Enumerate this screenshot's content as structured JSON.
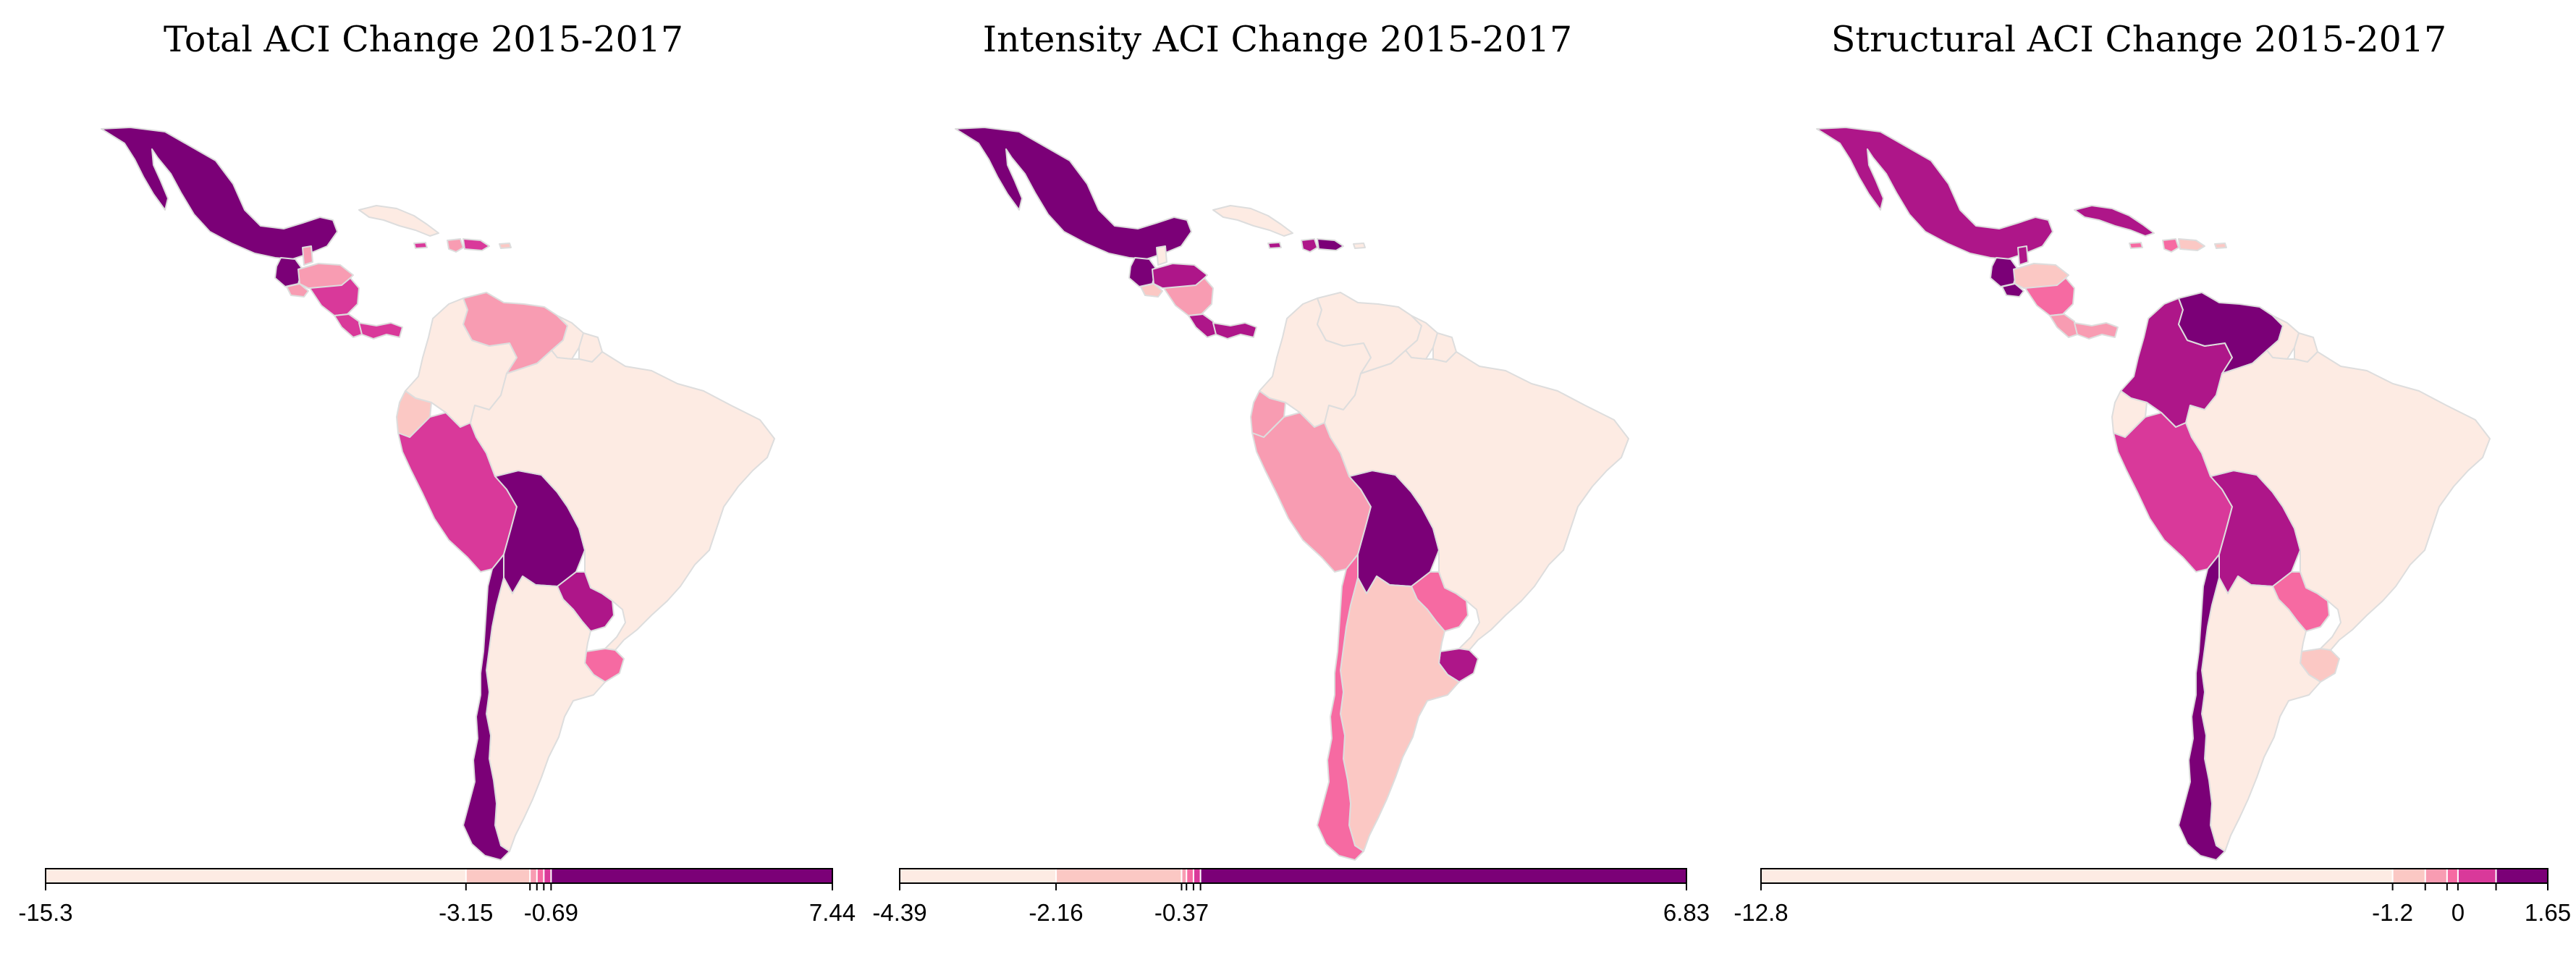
{
  "palette": {
    "c1": "#fdebe3",
    "c2": "#fbc8c4",
    "c3": "#f89cb2",
    "c4": "#f66aa2",
    "c5": "#d9399a",
    "c6": "#ae1689",
    "c7": "#7b0077"
  },
  "maps": [
    {
      "id": "total",
      "title": "Total ACI Change 2015-2017",
      "country_class": {
        "mexico": "c7",
        "guatemala": "c7",
        "belize": "c3",
        "honduras": "c3",
        "el_salvador": "c3",
        "nicaragua": "c5",
        "costa_rica": "c5",
        "panama": "c5",
        "cuba": "c1",
        "dominican_rep": "c5",
        "haiti": "c3",
        "jamaica": "c5",
        "puerto_rico": "c2",
        "colombia": "c1",
        "venezuela": "c3",
        "guyana": "c1",
        "suriname": "c1",
        "ecuador": "c2",
        "peru": "c5",
        "brazil": "c1",
        "bolivia": "c7",
        "paraguay": "c6",
        "chile": "c7",
        "argentina": "c1",
        "uruguay": "c4"
      },
      "legend": {
        "min": -15.3,
        "max": 7.44,
        "breaks": [
          -15.3,
          -3.15,
          -1.3,
          -1.1,
          -0.9,
          -0.69,
          7.44
        ],
        "colors": [
          "c1",
          "c2",
          "c3",
          "c4",
          "c5",
          "c7"
        ],
        "labels": [
          {
            "value": -15.3,
            "text": "-15.3"
          },
          {
            "value": -3.15,
            "text": "-3.15"
          },
          {
            "value": -0.69,
            "text": "-0.69"
          },
          {
            "value": 7.44,
            "text": "7.44"
          }
        ]
      }
    },
    {
      "id": "intensity",
      "title": "Intensity ACI Change 2015-2017",
      "country_class": {
        "mexico": "c7",
        "guatemala": "c7",
        "belize": "c1",
        "honduras": "c6",
        "el_salvador": "c2",
        "nicaragua": "c3",
        "costa_rica": "c6",
        "panama": "c6",
        "cuba": "c1",
        "dominican_rep": "c7",
        "haiti": "c6",
        "jamaica": "c6",
        "puerto_rico": "c1",
        "colombia": "c1",
        "venezuela": "c1",
        "guyana": "c1",
        "suriname": "c1",
        "ecuador": "c3",
        "peru": "c3",
        "brazil": "c1",
        "bolivia": "c7",
        "paraguay": "c4",
        "chile": "c4",
        "argentina": "c2",
        "uruguay": "c6"
      },
      "legend": {
        "min": -4.39,
        "max": 6.83,
        "breaks": [
          -4.39,
          -2.16,
          -0.37,
          -0.3,
          -0.2,
          -0.1,
          6.83
        ],
        "colors": [
          "c1",
          "c2",
          "c3",
          "c4",
          "c5",
          "c7"
        ],
        "labels": [
          {
            "value": -4.39,
            "text": "-4.39"
          },
          {
            "value": -2.16,
            "text": "-2.16"
          },
          {
            "value": -0.37,
            "text": "-0.37"
          },
          {
            "value": 6.83,
            "text": "6.83"
          }
        ]
      }
    },
    {
      "id": "structural",
      "title": "Structural ACI Change 2015-2017",
      "country_class": {
        "mexico": "c6",
        "guatemala": "c7",
        "belize": "c6",
        "honduras": "c2",
        "el_salvador": "c7",
        "nicaragua": "c4",
        "costa_rica": "c3",
        "panama": "c3",
        "cuba": "c6",
        "dominican_rep": "c2",
        "haiti": "c4",
        "jamaica": "c4",
        "puerto_rico": "c2",
        "colombia": "c6",
        "venezuela": "c7",
        "guyana": "c1",
        "suriname": "c1",
        "ecuador": "c1",
        "peru": "c5",
        "brazil": "c1",
        "bolivia": "c6",
        "paraguay": "c4",
        "chile": "c7",
        "argentina": "c1",
        "uruguay": "c2"
      },
      "legend": {
        "min": -12.8,
        "max": 1.65,
        "breaks": [
          -12.8,
          -1.2,
          -0.6,
          -0.2,
          0,
          0.7,
          1.65
        ],
        "colors": [
          "c1",
          "c2",
          "c3",
          "c4",
          "c5",
          "c7"
        ],
        "labels": [
          {
            "value": -12.8,
            "text": "-12.8"
          },
          {
            "value": -1.2,
            "text": "-1.2"
          },
          {
            "value": 0,
            "text": "0"
          },
          {
            "value": 1.65,
            "text": "1.65"
          }
        ]
      }
    }
  ]
}
